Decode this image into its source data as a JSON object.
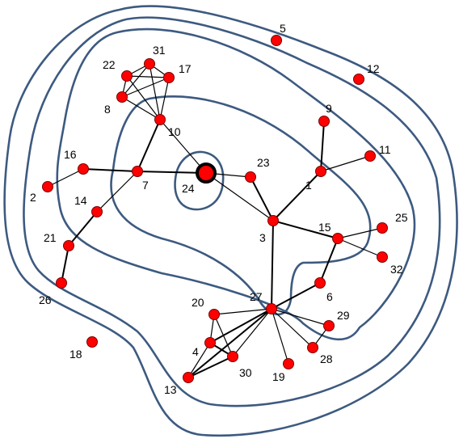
{
  "diagram": {
    "colors": {
      "contour": "#3d5a80",
      "node_fill": "#ff0000",
      "edge": "#000000",
      "center_ring": "#000000"
    },
    "center_node": "24",
    "nodes": [
      {
        "id": "1",
        "label": "1"
      },
      {
        "id": "2",
        "label": "2"
      },
      {
        "id": "3",
        "label": "3"
      },
      {
        "id": "4",
        "label": "4"
      },
      {
        "id": "5",
        "label": "5"
      },
      {
        "id": "6",
        "label": "6"
      },
      {
        "id": "7",
        "label": "7"
      },
      {
        "id": "8",
        "label": "8"
      },
      {
        "id": "9",
        "label": "9"
      },
      {
        "id": "10",
        "label": "10"
      },
      {
        "id": "11",
        "label": "11"
      },
      {
        "id": "12",
        "label": "12"
      },
      {
        "id": "13",
        "label": "13"
      },
      {
        "id": "14",
        "label": "14"
      },
      {
        "id": "15",
        "label": "15"
      },
      {
        "id": "16",
        "label": "16"
      },
      {
        "id": "17",
        "label": "17"
      },
      {
        "id": "18",
        "label": "18"
      },
      {
        "id": "19",
        "label": "19"
      },
      {
        "id": "20",
        "label": "20"
      },
      {
        "id": "21",
        "label": "21"
      },
      {
        "id": "22",
        "label": "22"
      },
      {
        "id": "23",
        "label": "23"
      },
      {
        "id": "24",
        "label": "24"
      },
      {
        "id": "25",
        "label": "25"
      },
      {
        "id": "26",
        "label": "26"
      },
      {
        "id": "27",
        "label": "27"
      },
      {
        "id": "28",
        "label": "28"
      },
      {
        "id": "29",
        "label": "29"
      },
      {
        "id": "30",
        "label": "30"
      },
      {
        "id": "31",
        "label": "31"
      },
      {
        "id": "32",
        "label": "32"
      }
    ],
    "edges": [
      [
        "24",
        "7"
      ],
      [
        "24",
        "10"
      ],
      [
        "24",
        "23"
      ],
      [
        "24",
        "3"
      ],
      [
        "7",
        "16"
      ],
      [
        "16",
        "2"
      ],
      [
        "7",
        "10"
      ],
      [
        "7",
        "14"
      ],
      [
        "14",
        "21"
      ],
      [
        "21",
        "26"
      ],
      [
        "10",
        "8"
      ],
      [
        "10",
        "22"
      ],
      [
        "10",
        "31"
      ],
      [
        "10",
        "17"
      ],
      [
        "22",
        "31"
      ],
      [
        "22",
        "17"
      ],
      [
        "22",
        "8"
      ],
      [
        "31",
        "17"
      ],
      [
        "31",
        "8"
      ],
      [
        "17",
        "8"
      ],
      [
        "23",
        "3"
      ],
      [
        "3",
        "1"
      ],
      [
        "3",
        "15"
      ],
      [
        "3",
        "27"
      ],
      [
        "1",
        "9"
      ],
      [
        "1",
        "11"
      ],
      [
        "15",
        "25"
      ],
      [
        "15",
        "32"
      ],
      [
        "15",
        "6"
      ],
      [
        "6",
        "27"
      ],
      [
        "27",
        "20"
      ],
      [
        "27",
        "4"
      ],
      [
        "27",
        "30"
      ],
      [
        "27",
        "13"
      ],
      [
        "27",
        "19"
      ],
      [
        "27",
        "28"
      ],
      [
        "27",
        "29"
      ],
      [
        "20",
        "4"
      ],
      [
        "20",
        "30"
      ],
      [
        "4",
        "30"
      ],
      [
        "4",
        "13"
      ],
      [
        "13",
        "30"
      ],
      [
        "28",
        "29"
      ]
    ],
    "contour_count": 5
  }
}
